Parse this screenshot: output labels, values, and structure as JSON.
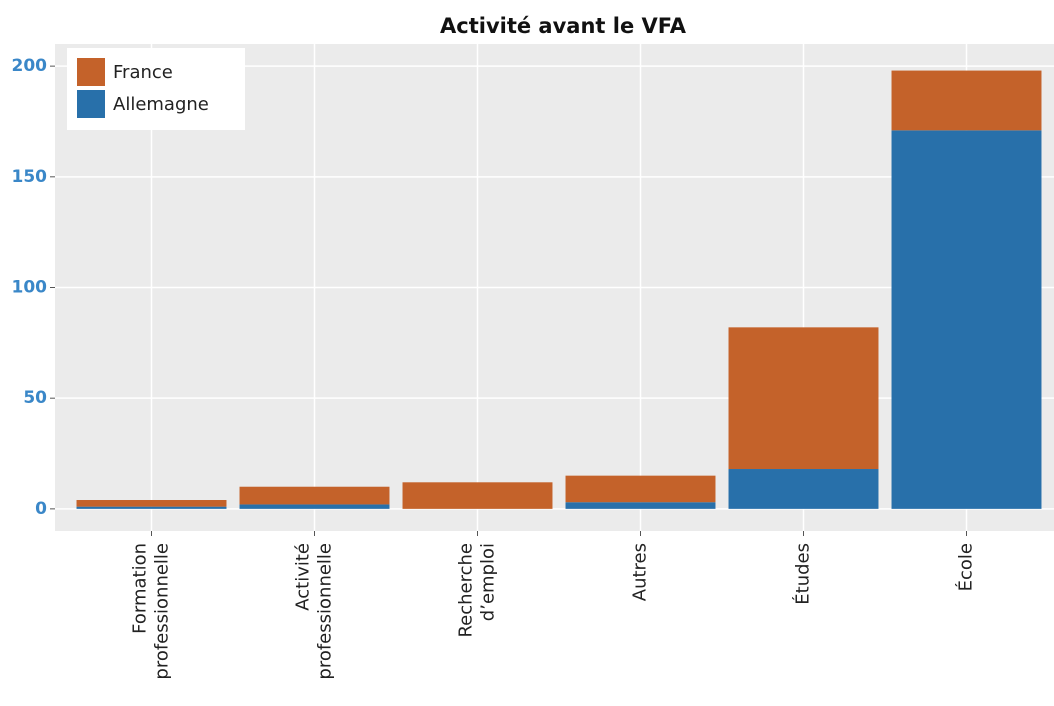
{
  "chart_data": {
    "type": "stacked_bar",
    "title": "Activité avant le VFA",
    "categories": [
      [
        "Formation",
        "professionnelle"
      ],
      [
        "Activité",
        "professionnelle"
      ],
      [
        "Recherche",
        "d’emploi"
      ],
      [
        "Autres"
      ],
      [
        "Études"
      ],
      [
        "École"
      ]
    ],
    "series": [
      {
        "name": "Allemagne",
        "color": "#2870aa",
        "values": [
          1,
          2,
          0,
          3,
          18,
          171
        ]
      },
      {
        "name": "France",
        "color": "#c4622a",
        "values": [
          3,
          8,
          12,
          12,
          64,
          27
        ]
      }
    ],
    "ylim": [
      -10,
      210
    ],
    "yticks": [
      0,
      50,
      100,
      150,
      200
    ],
    "grid": true,
    "legend": "top-left"
  }
}
